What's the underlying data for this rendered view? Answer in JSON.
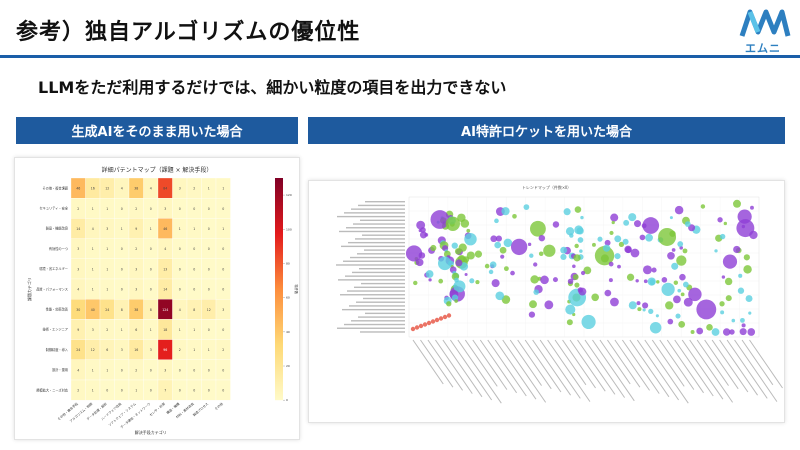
{
  "slide": {
    "title": "参考）独自アルゴリズムの優位性",
    "subtitle": "LLMをただ利用するだけでは、細かい粒度の項目を出力できない",
    "logo_text": "エムニ",
    "colors": {
      "accent": "#1e5a9e",
      "logo": "#2d7fc0"
    }
  },
  "panels": {
    "left_header": "生成AIをそのまま用いた場合",
    "right_header": "AI特許ロケットを用いた場合"
  },
  "heatmap": {
    "title": "詳細パテントマップ（課題 × 解決手段）",
    "xlabel": "解決手段カテゴリ",
    "ylabel": "課題カテゴリ",
    "colorbar_label": "特許数",
    "rows": [
      "その他・複合課題",
      "セキュリティ・安全",
      "製品・機能改良",
      "有効性の一つ",
      "環境・省エネルギー",
      "品質・パフォーマンス",
      "性能・効率改善",
      "技術・エンジニア",
      "制御精度・導入",
      "設計・運用",
      "規模拡大・ニーズ対応"
    ],
    "cols": [
      "その他・複合手段",
      "アルゴリズム・制御",
      "データ処理・解析",
      "ハードウェア改良",
      "ソフトウェア・システム",
      "データ通信・ネットワーク",
      "センサ・計測",
      "構造・機構",
      "材料・素材改良",
      "製造プロセス",
      "その他"
    ],
    "values": [
      [
        46,
        16,
        12,
        4,
        38,
        4,
        84,
        3,
        2,
        1,
        1
      ],
      [
        2,
        1,
        1,
        0,
        2,
        0,
        3,
        0,
        0,
        0,
        0
      ],
      [
        14,
        4,
        3,
        1,
        9,
        1,
        46,
        1,
        1,
        0,
        1
      ],
      [
        3,
        1,
        1,
        0,
        2,
        0,
        4,
        0,
        0,
        0,
        0
      ],
      [
        3,
        1,
        1,
        0,
        3,
        0,
        13,
        0,
        0,
        0,
        0
      ],
      [
        4,
        1,
        1,
        0,
        3,
        0,
        14,
        0,
        0,
        0,
        0
      ],
      [
        30,
        40,
        24,
        8,
        38,
        8,
        124,
        4,
        8,
        12,
        3
      ],
      [
        9,
        3,
        2,
        1,
        6,
        1,
        18,
        1,
        1,
        0,
        0
      ],
      [
        24,
        12,
        6,
        3,
        16,
        3,
        96,
        2,
        1,
        1,
        2
      ],
      [
        4,
        1,
        1,
        0,
        2,
        0,
        3,
        0,
        0,
        0,
        0
      ],
      [
        2,
        1,
        0,
        0,
        1,
        0,
        7,
        0,
        0,
        0,
        0
      ]
    ],
    "colorbar_ticks": [
      "0",
      "20",
      "40",
      "60",
      "80",
      "100",
      "120"
    ],
    "vmax": 130
  },
  "bubble": {
    "title": "トレンドマップ（件数×Ⅱ）",
    "colors": [
      "#8e3fd6",
      "#5bcfe0",
      "#7dc73a",
      "#e85a4a"
    ]
  }
}
